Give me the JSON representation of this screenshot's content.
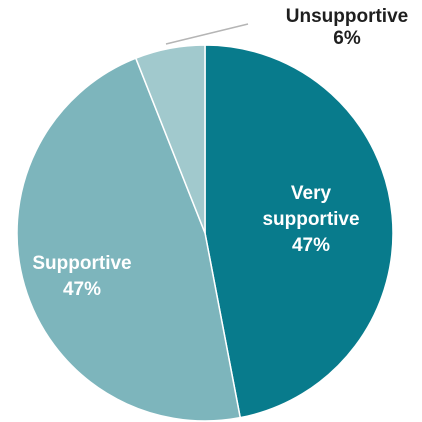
{
  "chart_data": {
    "type": "pie",
    "title": "",
    "slices": [
      {
        "label_lines": [
          "Very",
          "supportive"
        ],
        "value": 47,
        "value_text": "47%",
        "color": "#087b8c"
      },
      {
        "label_lines": [
          "Supportive"
        ],
        "value": 47,
        "value_text": "47%",
        "color": "#7db5bc"
      },
      {
        "label_lines": [
          "Unsupportive"
        ],
        "value": 6,
        "value_text": "6%",
        "color": "#a1c9cd"
      }
    ],
    "start_angle": "12 o'clock",
    "direction": "clockwise",
    "leader_line_color": "#b5b5b5"
  }
}
